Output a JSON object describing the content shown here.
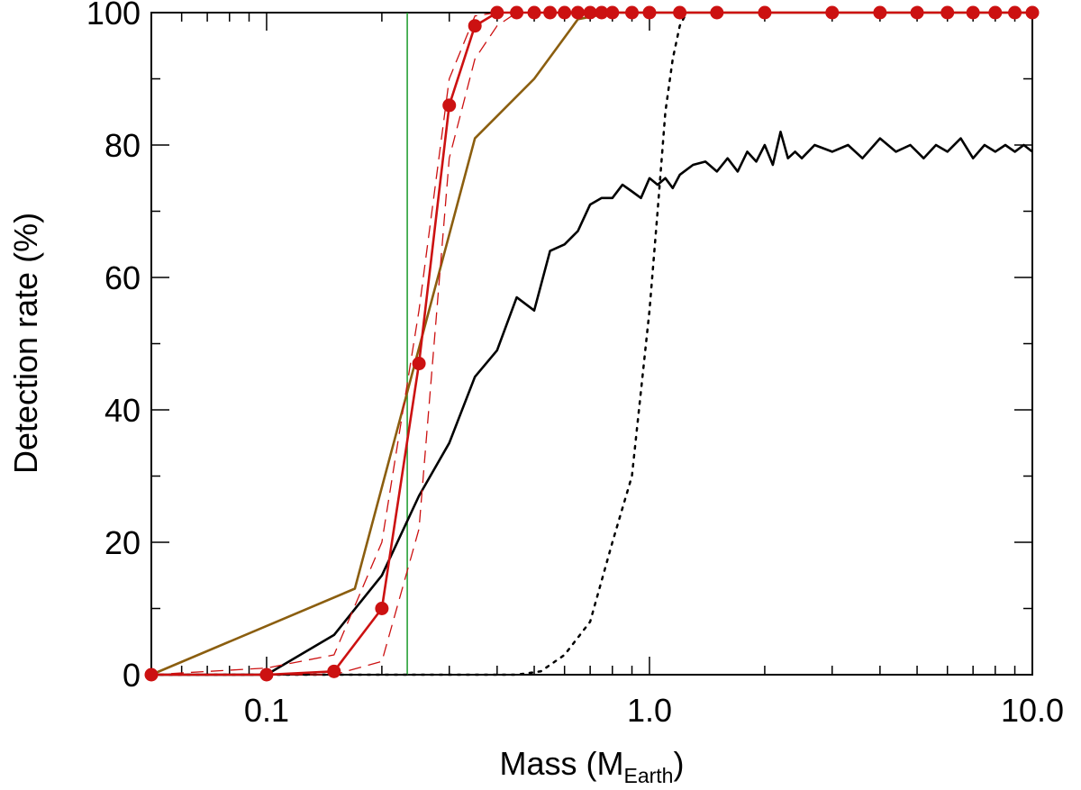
{
  "chart_data": {
    "type": "line",
    "xlabel": "Mass (M",
    "xlabel_sub": "Earth",
    "xlabel_close": ")",
    "ylabel": "Detection rate (%)",
    "xscale": "log",
    "xlim": [
      0.05,
      10.0
    ],
    "ylim": [
      0,
      100
    ],
    "x_major_ticks": [
      0.1,
      1.0,
      10.0
    ],
    "x_tick_labels": [
      "0.1",
      "1.0",
      "10.0"
    ],
    "y_major_ticks": [
      0,
      20,
      40,
      60,
      80,
      100
    ],
    "y_tick_labels": [
      "0",
      "20",
      "40",
      "60",
      "80",
      "100"
    ],
    "y_minor_step": 10,
    "vertical_line": {
      "x": 0.233,
      "color": "#1a9a2a"
    },
    "series": [
      {
        "name": "red-points",
        "color": "#cc1111",
        "style": "solid",
        "markers": true,
        "x": [
          0.05,
          0.1,
          0.15,
          0.2,
          0.25,
          0.3,
          0.35,
          0.4,
          0.45,
          0.5,
          0.55,
          0.6,
          0.65,
          0.7,
          0.75,
          0.8,
          0.9,
          1.0,
          1.2,
          1.5,
          2.0,
          3.0,
          4.0,
          5.0,
          6.0,
          7.0,
          8.0,
          9.0,
          10.0
        ],
        "y": [
          0,
          0,
          0.5,
          10,
          47,
          86,
          98,
          100,
          100,
          100,
          100,
          100,
          100,
          100,
          100,
          100,
          100,
          100,
          100,
          100,
          100,
          100,
          100,
          100,
          100,
          100,
          100,
          100,
          100
        ]
      },
      {
        "name": "red-dashed-upper",
        "color": "#cc1111",
        "style": "dashed",
        "x": [
          0.05,
          0.1,
          0.15,
          0.2,
          0.25,
          0.3,
          0.35,
          0.4,
          0.45,
          0.5
        ],
        "y": [
          0,
          1,
          3,
          20,
          55,
          90,
          99.5,
          100,
          100,
          100
        ]
      },
      {
        "name": "red-dashed-lower",
        "color": "#cc1111",
        "style": "dashed",
        "x": [
          0.05,
          0.1,
          0.15,
          0.2,
          0.25,
          0.3,
          0.35,
          0.4,
          0.45,
          0.5
        ],
        "y": [
          0,
          0,
          0,
          2,
          22,
          78,
          93,
          98,
          100,
          100
        ]
      },
      {
        "name": "brown",
        "color": "#8b5e0f",
        "style": "solid",
        "x": [
          0.05,
          0.17,
          0.35,
          0.5,
          0.65,
          0.8,
          1.2,
          10.0
        ],
        "y": [
          0,
          13,
          81,
          90,
          99,
          100,
          100,
          100
        ]
      },
      {
        "name": "black-solid",
        "color": "#000000",
        "style": "solid",
        "x": [
          0.05,
          0.1,
          0.15,
          0.2,
          0.25,
          0.3,
          0.35,
          0.4,
          0.45,
          0.5,
          0.55,
          0.6,
          0.65,
          0.7,
          0.75,
          0.8,
          0.85,
          0.9,
          0.95,
          1.0,
          1.05,
          1.1,
          1.15,
          1.2,
          1.3,
          1.4,
          1.5,
          1.6,
          1.7,
          1.8,
          1.9,
          2.0,
          2.1,
          2.2,
          2.3,
          2.4,
          2.5,
          2.7,
          3.0,
          3.3,
          3.6,
          4.0,
          4.4,
          4.8,
          5.2,
          5.6,
          6.0,
          6.5,
          7.0,
          7.5,
          8.0,
          8.5,
          9.0,
          9.5,
          10.0
        ],
        "y": [
          0,
          0,
          6,
          15,
          27,
          35,
          45,
          49,
          57,
          55,
          64,
          65,
          67,
          71,
          72,
          72,
          74,
          73,
          72,
          75,
          74,
          75,
          73.5,
          75.5,
          77,
          77.5,
          76,
          78,
          76,
          79,
          77.5,
          80,
          77,
          82,
          78,
          79,
          78,
          80,
          79,
          80,
          78,
          81,
          79,
          80,
          78,
          80,
          79,
          81,
          78,
          80,
          79,
          80,
          79,
          80,
          79
        ]
      },
      {
        "name": "black-dotted",
        "color": "#000000",
        "style": "dotted",
        "x": [
          0.05,
          0.3,
          0.45,
          0.52,
          0.6,
          0.7,
          0.8,
          0.9,
          1.0,
          1.05,
          1.1,
          1.15,
          1.2,
          1.25
        ],
        "y": [
          0,
          0,
          0,
          0.5,
          3,
          8,
          20,
          30,
          55,
          70,
          85,
          93,
          98,
          100
        ]
      }
    ]
  }
}
